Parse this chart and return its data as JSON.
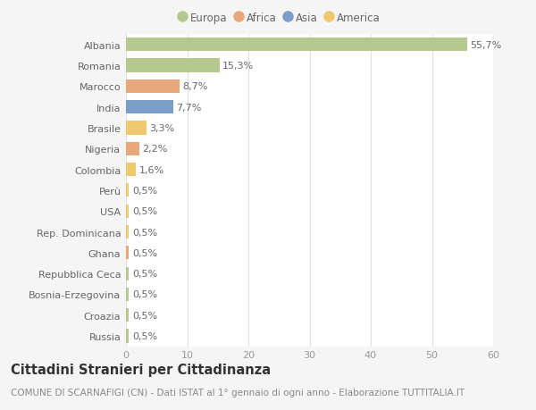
{
  "countries": [
    "Albania",
    "Romania",
    "Marocco",
    "India",
    "Brasile",
    "Nigeria",
    "Colombia",
    "Perù",
    "USA",
    "Rep. Dominicana",
    "Ghana",
    "Repubblica Ceca",
    "Bosnia-Erzegovina",
    "Croazia",
    "Russia"
  ],
  "values": [
    55.7,
    15.3,
    8.7,
    7.7,
    3.3,
    2.2,
    1.6,
    0.5,
    0.5,
    0.5,
    0.5,
    0.5,
    0.5,
    0.5,
    0.5
  ],
  "labels": [
    "55,7%",
    "15,3%",
    "8,7%",
    "7,7%",
    "3,3%",
    "2,2%",
    "1,6%",
    "0,5%",
    "0,5%",
    "0,5%",
    "0,5%",
    "0,5%",
    "0,5%",
    "0,5%",
    "0,5%"
  ],
  "continents": [
    "Europa",
    "Europa",
    "Africa",
    "Asia",
    "America",
    "Africa",
    "America",
    "America",
    "America",
    "America",
    "Africa",
    "Europa",
    "Europa",
    "Europa",
    "Europa"
  ],
  "colors": {
    "Europa": "#b5c98e",
    "Africa": "#e8a87c",
    "Asia": "#7b9ec9",
    "America": "#f0c96e"
  },
  "legend_order": [
    "Europa",
    "Africa",
    "Asia",
    "America"
  ],
  "xlim": [
    0,
    60
  ],
  "xticks": [
    0,
    10,
    20,
    30,
    40,
    50,
    60
  ],
  "title": "Cittadini Stranieri per Cittadinanza",
  "subtitle": "COMUNE DI SCARNAFIGI (CN) - Dati ISTAT al 1° gennaio di ogni anno - Elaborazione TUTTITALIA.IT",
  "bg_color": "#f5f5f5",
  "plot_bg_color": "#ffffff",
  "grid_color": "#e0e0e0",
  "label_fontsize": 8,
  "tick_fontsize": 8,
  "title_fontsize": 10.5,
  "subtitle_fontsize": 7.5
}
